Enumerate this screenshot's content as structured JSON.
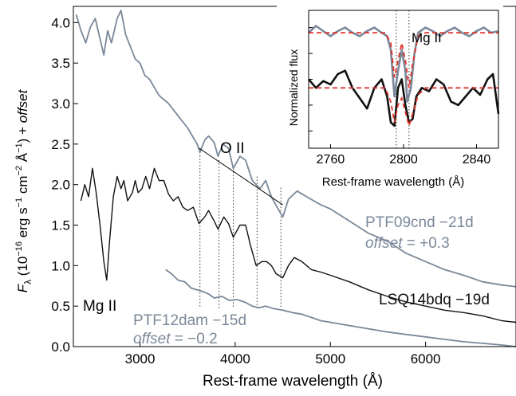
{
  "chart_data": [
    {
      "type": "line",
      "xlabel": "Rest-frame wavelength (Å)",
      "ylabel_parts": [
        "F",
        "λ",
        " (10",
        "−16",
        " erg s",
        "−1",
        " cm",
        "−2",
        " Å",
        "−1",
        ") + ",
        "offset"
      ],
      "xlim": [
        2300,
        6950
      ],
      "ylim": [
        0,
        4.2
      ],
      "xticks": [
        3000,
        4000,
        5000,
        6000
      ],
      "yticks": [
        0.0,
        0.5,
        1.0,
        1.5,
        2.0,
        2.5,
        3.0,
        3.5,
        4.0
      ],
      "ytick_labels": [
        "0.0",
        "0.5",
        "1.0",
        "1.5",
        "2.0",
        "2.5",
        "3.0",
        "3.5",
        "4.0"
      ],
      "series": [
        {
          "name": "PTF09cnd −21d",
          "offset_label": "+0.3",
          "color": "#7a8899",
          "points": [
            [
              2330,
              4.1
            ],
            [
              2380,
              3.9
            ],
            [
              2430,
              3.75
            ],
            [
              2480,
              3.95
            ],
            [
              2530,
              4.05
            ],
            [
              2580,
              3.8
            ],
            [
              2620,
              3.6
            ],
            [
              2660,
              3.9
            ],
            [
              2700,
              3.75
            ],
            [
              2760,
              4.05
            ],
            [
              2800,
              4.15
            ],
            [
              2850,
              3.85
            ],
            [
              2900,
              3.7
            ],
            [
              2950,
              3.55
            ],
            [
              3000,
              3.5
            ],
            [
              3050,
              3.35
            ],
            [
              3100,
              3.3
            ],
            [
              3150,
              3.2
            ],
            [
              3200,
              3.1
            ],
            [
              3300,
              3.0
            ],
            [
              3400,
              2.85
            ],
            [
              3500,
              2.7
            ],
            [
              3600,
              2.5
            ],
            [
              3630,
              2.4
            ],
            [
              3680,
              2.55
            ],
            [
              3720,
              2.6
            ],
            [
              3780,
              2.52
            ],
            [
              3820,
              2.35
            ],
            [
              3870,
              2.5
            ],
            [
              3930,
              2.45
            ],
            [
              3980,
              2.2
            ],
            [
              4050,
              2.35
            ],
            [
              4110,
              2.3
            ],
            [
              4180,
              2.05
            ],
            [
              4260,
              1.95
            ],
            [
              4320,
              2.05
            ],
            [
              4380,
              1.85
            ],
            [
              4440,
              1.72
            ],
            [
              4500,
              1.6
            ],
            [
              4560,
              1.82
            ],
            [
              4650,
              1.92
            ],
            [
              4750,
              1.85
            ],
            [
              4900,
              1.75
            ],
            [
              5000,
              1.7
            ],
            [
              5200,
              1.55
            ],
            [
              5400,
              1.4
            ],
            [
              5600,
              1.3
            ],
            [
              5800,
              1.15
            ],
            [
              6000,
              1.05
            ],
            [
              6200,
              0.95
            ],
            [
              6400,
              0.88
            ],
            [
              6600,
              0.8
            ],
            [
              6800,
              0.76
            ],
            [
              6950,
              0.74
            ]
          ]
        },
        {
          "name": "LSQ14bdq −19d",
          "color": "#111111",
          "points": [
            [
              2380,
              1.8
            ],
            [
              2420,
              2.0
            ],
            [
              2460,
              1.85
            ],
            [
              2500,
              2.2
            ],
            [
              2540,
              1.9
            ],
            [
              2580,
              1.5
            ],
            [
              2620,
              1.05
            ],
            [
              2650,
              0.82
            ],
            [
              2680,
              1.3
            ],
            [
              2720,
              1.85
            ],
            [
              2760,
              2.1
            ],
            [
              2800,
              1.95
            ],
            [
              2830,
              2.05
            ],
            [
              2870,
              1.8
            ],
            [
              2920,
              1.9
            ],
            [
              2950,
              2.05
            ],
            [
              2980,
              1.9
            ],
            [
              3020,
              1.95
            ],
            [
              3060,
              2.1
            ],
            [
              3100,
              1.95
            ],
            [
              3150,
              2.2
            ],
            [
              3200,
              2.05
            ],
            [
              3250,
              2.05
            ],
            [
              3300,
              1.88
            ],
            [
              3350,
              1.8
            ],
            [
              3400,
              1.85
            ],
            [
              3450,
              1.72
            ],
            [
              3500,
              1.68
            ],
            [
              3560,
              1.72
            ],
            [
              3620,
              1.52
            ],
            [
              3680,
              1.6
            ],
            [
              3720,
              1.68
            ],
            [
              3780,
              1.55
            ],
            [
              3820,
              1.45
            ],
            [
              3880,
              1.6
            ],
            [
              3930,
              1.52
            ],
            [
              3980,
              1.35
            ],
            [
              4050,
              1.5
            ],
            [
              4110,
              1.5
            ],
            [
              4160,
              1.25
            ],
            [
              4220,
              1.0
            ],
            [
              4280,
              1.05
            ],
            [
              4330,
              1.05
            ],
            [
              4380,
              1.0
            ],
            [
              4430,
              0.9
            ],
            [
              4500,
              0.85
            ],
            [
              4560,
              1.0
            ],
            [
              4620,
              1.1
            ],
            [
              4700,
              1.05
            ],
            [
              4800,
              0.95
            ],
            [
              4900,
              0.92
            ],
            [
              5000,
              0.88
            ],
            [
              5200,
              0.8
            ],
            [
              5400,
              0.7
            ],
            [
              5600,
              0.62
            ],
            [
              5800,
              0.55
            ],
            [
              6000,
              0.5
            ],
            [
              6200,
              0.45
            ],
            [
              6400,
              0.42
            ],
            [
              6600,
              0.38
            ],
            [
              6800,
              0.32
            ],
            [
              6950,
              0.3
            ]
          ]
        },
        {
          "name": "PTF12dam −15d",
          "offset_label": "−0.2",
          "color": "#7a8899",
          "points": [
            [
              3270,
              0.95
            ],
            [
              3330,
              0.9
            ],
            [
              3400,
              0.82
            ],
            [
              3470,
              0.8
            ],
            [
              3540,
              0.72
            ],
            [
              3600,
              0.7
            ],
            [
              3660,
              0.68
            ],
            [
              3720,
              0.65
            ],
            [
              3780,
              0.6
            ],
            [
              3860,
              0.62
            ],
            [
              3940,
              0.57
            ],
            [
              4020,
              0.58
            ],
            [
              4100,
              0.55
            ],
            [
              4180,
              0.5
            ],
            [
              4250,
              0.48
            ],
            [
              4320,
              0.5
            ],
            [
              4400,
              0.47
            ],
            [
              4500,
              0.45
            ],
            [
              4600,
              0.42
            ],
            [
              4700,
              0.4
            ],
            [
              4800,
              0.36
            ],
            [
              4900,
              0.32
            ],
            [
              5000,
              0.3
            ],
            [
              5200,
              0.26
            ],
            [
              5400,
              0.22
            ],
            [
              5600,
              0.18
            ],
            [
              5800,
              0.15
            ],
            [
              6000,
              0.12
            ],
            [
              6200,
              0.09
            ],
            [
              6400,
              0.06
            ],
            [
              6600,
              0.04
            ],
            [
              6800,
              0.02
            ],
            [
              6950,
              0.0
            ]
          ]
        }
      ],
      "vlines": [
        3630,
        3830,
        3980,
        4230,
        4480
      ],
      "annotations": {
        "o2_label": "O II",
        "mg2_label": "Mg II",
        "offset_word": "offset",
        "offset_sign": " = "
      },
      "o2_line": [
        [
          3620,
          2.45
        ],
        [
          4500,
          1.75
        ]
      ]
    },
    {
      "type": "line",
      "title": "Mg II",
      "xlabel": "Rest-frame wavelength (Å)",
      "ylabel": "Normalized flux",
      "xlim": [
        2748,
        2852
      ],
      "xticks": [
        2760,
        2800,
        2840
      ],
      "vlines": [
        2796,
        2803
      ],
      "series": [
        {
          "color": "#7a8899",
          "points": [
            [
              2748,
              0.82
            ],
            [
              2752,
              0.86
            ],
            [
              2756,
              0.83
            ],
            [
              2760,
              0.8
            ],
            [
              2764,
              0.83
            ],
            [
              2768,
              0.85
            ],
            [
              2772,
              0.82
            ],
            [
              2776,
              0.8
            ],
            [
              2780,
              0.83
            ],
            [
              2784,
              0.85
            ],
            [
              2788,
              0.82
            ],
            [
              2791,
              0.8
            ],
            [
              2793,
              0.72
            ],
            [
              2795,
              0.45
            ],
            [
              2797,
              0.6
            ],
            [
              2799,
              0.72
            ],
            [
              2801,
              0.6
            ],
            [
              2802,
              0.42
            ],
            [
              2804,
              0.5
            ],
            [
              2806,
              0.7
            ],
            [
              2808,
              0.82
            ],
            [
              2812,
              0.85
            ],
            [
              2816,
              0.83
            ],
            [
              2820,
              0.8
            ],
            [
              2824,
              0.83
            ],
            [
              2828,
              0.85
            ],
            [
              2832,
              0.82
            ],
            [
              2836,
              0.8
            ],
            [
              2840,
              0.83
            ],
            [
              2844,
              0.85
            ],
            [
              2848,
              0.82
            ],
            [
              2852,
              0.83
            ]
          ]
        },
        {
          "color": "#111111",
          "points": [
            [
              2748,
              0.55
            ],
            [
              2752,
              0.5
            ],
            [
              2756,
              0.54
            ],
            [
              2760,
              0.52
            ],
            [
              2764,
              0.58
            ],
            [
              2768,
              0.6
            ],
            [
              2772,
              0.5
            ],
            [
              2776,
              0.44
            ],
            [
              2780,
              0.38
            ],
            [
              2784,
              0.5
            ],
            [
              2788,
              0.55
            ],
            [
              2791,
              0.45
            ],
            [
              2793,
              0.3
            ],
            [
              2795,
              0.28
            ],
            [
              2797,
              0.5
            ],
            [
              2799,
              0.55
            ],
            [
              2801,
              0.4
            ],
            [
              2803,
              0.3
            ],
            [
              2805,
              0.32
            ],
            [
              2807,
              0.45
            ],
            [
              2810,
              0.5
            ],
            [
              2814,
              0.48
            ],
            [
              2818,
              0.55
            ],
            [
              2822,
              0.52
            ],
            [
              2826,
              0.42
            ],
            [
              2830,
              0.4
            ],
            [
              2834,
              0.45
            ],
            [
              2838,
              0.5
            ],
            [
              2842,
              0.46
            ],
            [
              2846,
              0.55
            ],
            [
              2849,
              0.58
            ],
            [
              2852,
              0.35
            ]
          ]
        }
      ],
      "fits": [
        {
          "color": "#e0342c",
          "points": [
            [
              2748,
              0.82
            ],
            [
              2790,
              0.82
            ],
            [
              2793,
              0.76
            ],
            [
              2795,
              0.56
            ],
            [
              2797,
              0.66
            ],
            [
              2799,
              0.76
            ],
            [
              2801,
              0.66
            ],
            [
              2803,
              0.5
            ],
            [
              2805,
              0.64
            ],
            [
              2808,
              0.8
            ],
            [
              2812,
              0.82
            ],
            [
              2852,
              0.82
            ]
          ]
        },
        {
          "color": "#e0342c",
          "points": [
            [
              2748,
              0.5
            ],
            [
              2790,
              0.5
            ],
            [
              2793,
              0.42
            ],
            [
              2795,
              0.3
            ],
            [
              2797,
              0.4
            ],
            [
              2799,
              0.44
            ],
            [
              2801,
              0.36
            ],
            [
              2803,
              0.28
            ],
            [
              2805,
              0.35
            ],
            [
              2808,
              0.46
            ],
            [
              2812,
              0.5
            ],
            [
              2852,
              0.5
            ]
          ]
        }
      ]
    }
  ]
}
